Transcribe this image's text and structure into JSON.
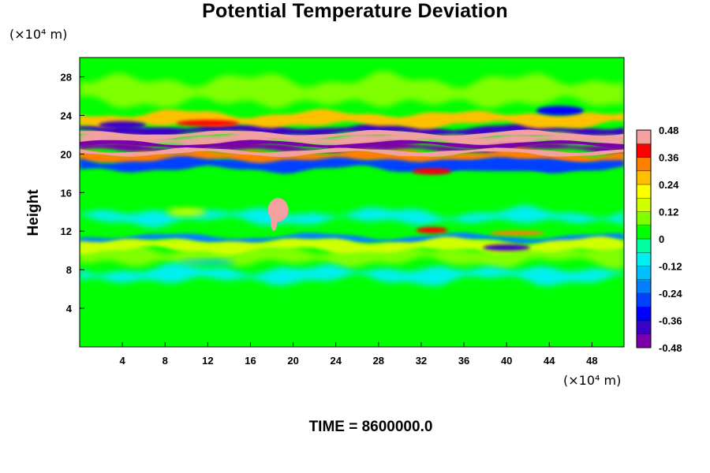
{
  "chart_data": {
    "type": "heatmap",
    "title": "Potential Temperature Deviation",
    "ylabel": "Height",
    "xlabel": "",
    "x_unit": "(×10⁴ m)",
    "y_unit": "(×10⁴ m)",
    "xlim": [
      0,
      51
    ],
    "ylim": [
      0,
      30
    ],
    "x_ticks": [
      4,
      8,
      12,
      16,
      20,
      24,
      28,
      32,
      36,
      40,
      44,
      48
    ],
    "y_ticks": [
      4,
      8,
      12,
      16,
      20,
      24,
      28
    ],
    "colorbar": {
      "min": -0.48,
      "max": 0.48,
      "tick_values": [
        0.48,
        0.36,
        0.24,
        0.12,
        0,
        -0.12,
        -0.24,
        -0.36,
        -0.48
      ],
      "tick_labels": [
        "0.48",
        "0.36",
        "0.24",
        "0.12",
        "0",
        "-0.12",
        "-0.24",
        "-0.36",
        "-0.48"
      ]
    },
    "field_description_bands": [
      {
        "y_center": 21.5,
        "half_width": 0.5,
        "value": 0.48
      },
      {
        "y_center": 20.6,
        "half_width": 0.3,
        "value": -0.45
      },
      {
        "y_center": 22.5,
        "half_width": 0.4,
        "value": -0.4
      },
      {
        "y_center": 19.6,
        "half_width": 0.6,
        "value": 0.3
      },
      {
        "y_center": 18.9,
        "half_width": 0.5,
        "value": -0.3
      },
      {
        "y_center": 23.6,
        "half_width": 0.6,
        "value": 0.25
      },
      {
        "y_center": 11.2,
        "half_width": 0.3,
        "value": -0.2
      },
      {
        "y_center": 10.5,
        "half_width": 0.5,
        "value": 0.15
      }
    ]
  },
  "footer": {
    "time_label": "TIME = 8600000.0"
  }
}
